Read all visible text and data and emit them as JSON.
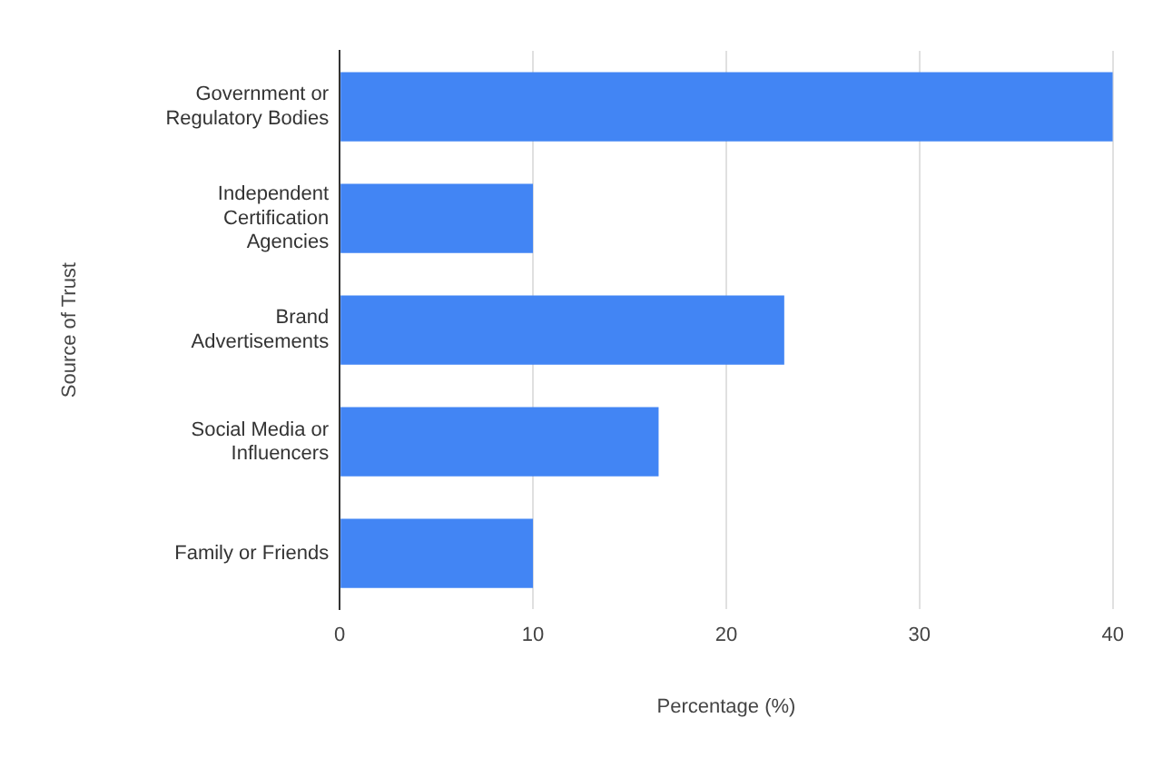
{
  "chart_data": {
    "type": "bar",
    "orientation": "horizontal",
    "xlabel": "Percentage (%)",
    "ylabel": "Source of Trust",
    "categories": [
      "Government or Regulatory Bodies",
      "Independent Certification Agencies",
      "Brand Advertisements",
      "Social Media or Influencers",
      "Family or Friends"
    ],
    "values": [
      40,
      10,
      23,
      16.5,
      10
    ],
    "color": "#4285f4",
    "xlim": [
      0,
      40
    ],
    "xticks": [
      0,
      10,
      20,
      30,
      40
    ],
    "grid": "x"
  }
}
